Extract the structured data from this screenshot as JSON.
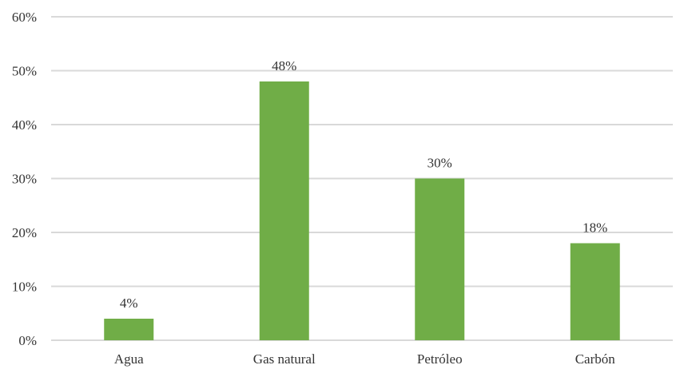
{
  "chart_data": {
    "type": "bar",
    "title": "",
    "xlabel": "",
    "ylabel": "",
    "categories": [
      "Agua",
      "Gas natural",
      "Petróleo",
      "Carbón"
    ],
    "values": [
      4,
      48,
      30,
      18
    ],
    "data_labels": [
      "4%",
      "48%",
      "30%",
      "18%"
    ],
    "ylim": [
      0,
      60
    ],
    "y_ticks": [
      0,
      10,
      20,
      30,
      40,
      50,
      60
    ],
    "y_tick_labels": [
      "0%",
      "10%",
      "20%",
      "30%",
      "40%",
      "50%",
      "60%"
    ],
    "grid": true,
    "legend": "none",
    "bar_color": "#70ad47",
    "grid_color": "#d9d9d9",
    "text_color": "#333333"
  }
}
